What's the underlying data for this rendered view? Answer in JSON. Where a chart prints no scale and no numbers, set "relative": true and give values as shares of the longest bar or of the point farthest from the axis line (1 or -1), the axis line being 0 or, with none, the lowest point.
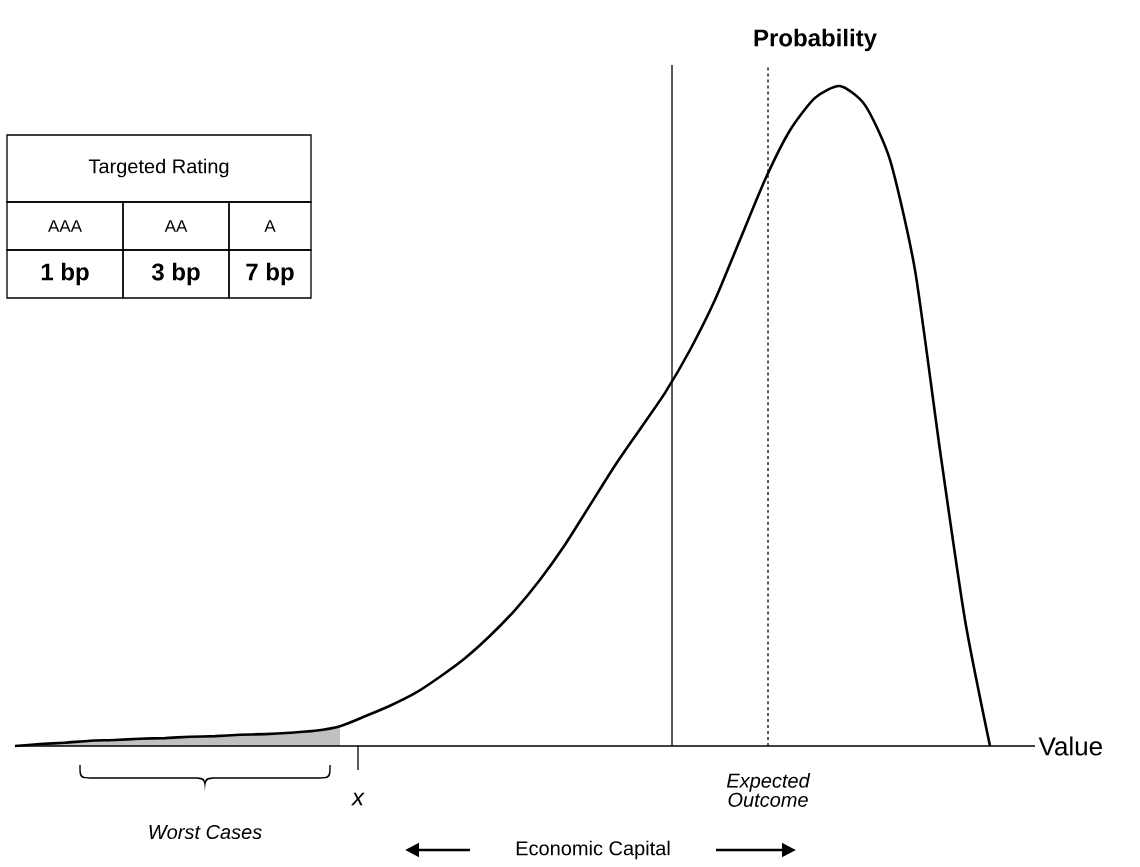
{
  "chart_data": {
    "type": "line",
    "relative": true,
    "title": "Probability",
    "xlabel": "Value",
    "categories": [
      null,
      null,
      null,
      null,
      null,
      null,
      null,
      null,
      null,
      null,
      null,
      null,
      null,
      null,
      null,
      null,
      null,
      null,
      null,
      null,
      null,
      null,
      null,
      null,
      null,
      null,
      null,
      null,
      null,
      null,
      null,
      null,
      null,
      null,
      null,
      null,
      null,
      null,
      null,
      null
    ],
    "series": [
      {
        "type": "area",
        "color": "#c0c0c0",
        "values": [
          0,
          0.003,
          0.005,
          0.008,
          0.009,
          0.011,
          0.012,
          0.014,
          0.015,
          0.017,
          0.018,
          0.02,
          0.023,
          0.03,
          null,
          null,
          null,
          null,
          null,
          null,
          null,
          null,
          null,
          null,
          null,
          null,
          null,
          null,
          null,
          null,
          null,
          null,
          null,
          null,
          null,
          null,
          null,
          null,
          null,
          null
        ]
      },
      {
        "color": "#000000",
        "values": [
          0,
          0.003,
          0.005,
          0.008,
          0.009,
          0.011,
          0.012,
          0.014,
          0.015,
          0.017,
          0.018,
          0.02,
          0.023,
          0.03,
          0.045,
          0.061,
          0.08,
          0.105,
          0.133,
          0.167,
          0.206,
          0.252,
          0.305,
          0.365,
          0.425,
          0.48,
          0.535,
          0.6,
          0.676,
          0.767,
          0.858,
          0.933,
          0.982,
          1.0,
          0.971,
          0.888,
          0.721,
          0.448,
          0.191,
          0
        ]
      }
    ],
    "marker": "none",
    "line_style": "solid",
    "annotations": [
      "x",
      "Worst Cases",
      "Economic Capital",
      "Targeted Rating",
      "AAA",
      "AA",
      "A",
      "1 bp",
      "3 bp",
      "7 bp",
      "Expected Outcome"
    ]
  }
}
